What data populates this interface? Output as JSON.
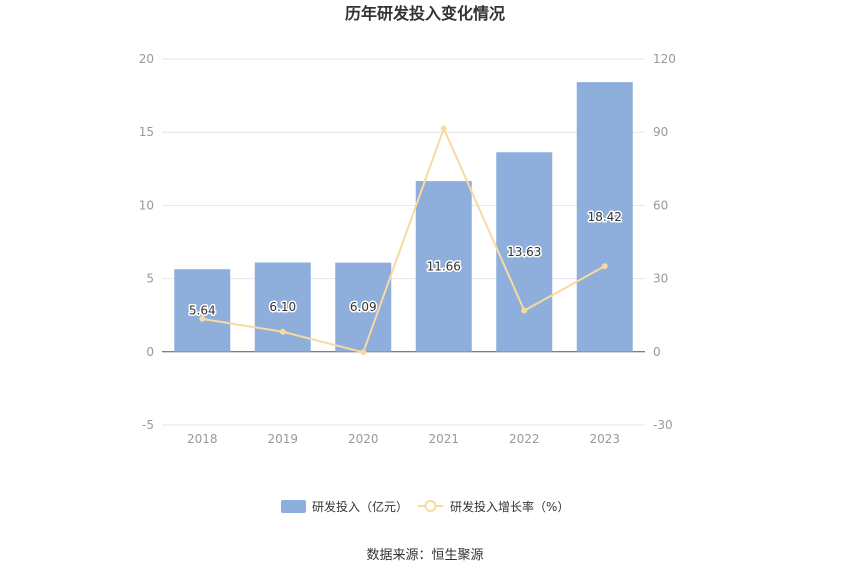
{
  "chart_data": {
    "type": "bar",
    "title": "历年研发投入变化情况",
    "categories": [
      "2018",
      "2019",
      "2020",
      "2021",
      "2022",
      "2023"
    ],
    "series": [
      {
        "name": "研发投入（亿元）",
        "type": "bar",
        "axis": "left",
        "values": [
          5.64,
          6.1,
          6.09,
          11.66,
          13.63,
          18.42
        ],
        "labels": [
          "5.64",
          "6.10",
          "6.09",
          "11.66",
          "13.63",
          "18.42"
        ],
        "color": "#8eaedb"
      },
      {
        "name": "研发投入增长率（%）",
        "type": "line",
        "axis": "right",
        "values": [
          13.5,
          8.2,
          -0.2,
          91.5,
          16.9,
          35.1
        ],
        "color": "#fad9a1"
      }
    ],
    "y_left": {
      "min": -5,
      "max": 20,
      "ticks": [
        "-5",
        "0",
        "5",
        "10",
        "15",
        "20"
      ]
    },
    "y_right": {
      "min": -30,
      "max": 120,
      "ticks": [
        "-30",
        "0",
        "30",
        "60",
        "90",
        "120"
      ]
    },
    "grid": true,
    "legend_position": "bottom"
  },
  "source": "数据来源：恒生聚源"
}
